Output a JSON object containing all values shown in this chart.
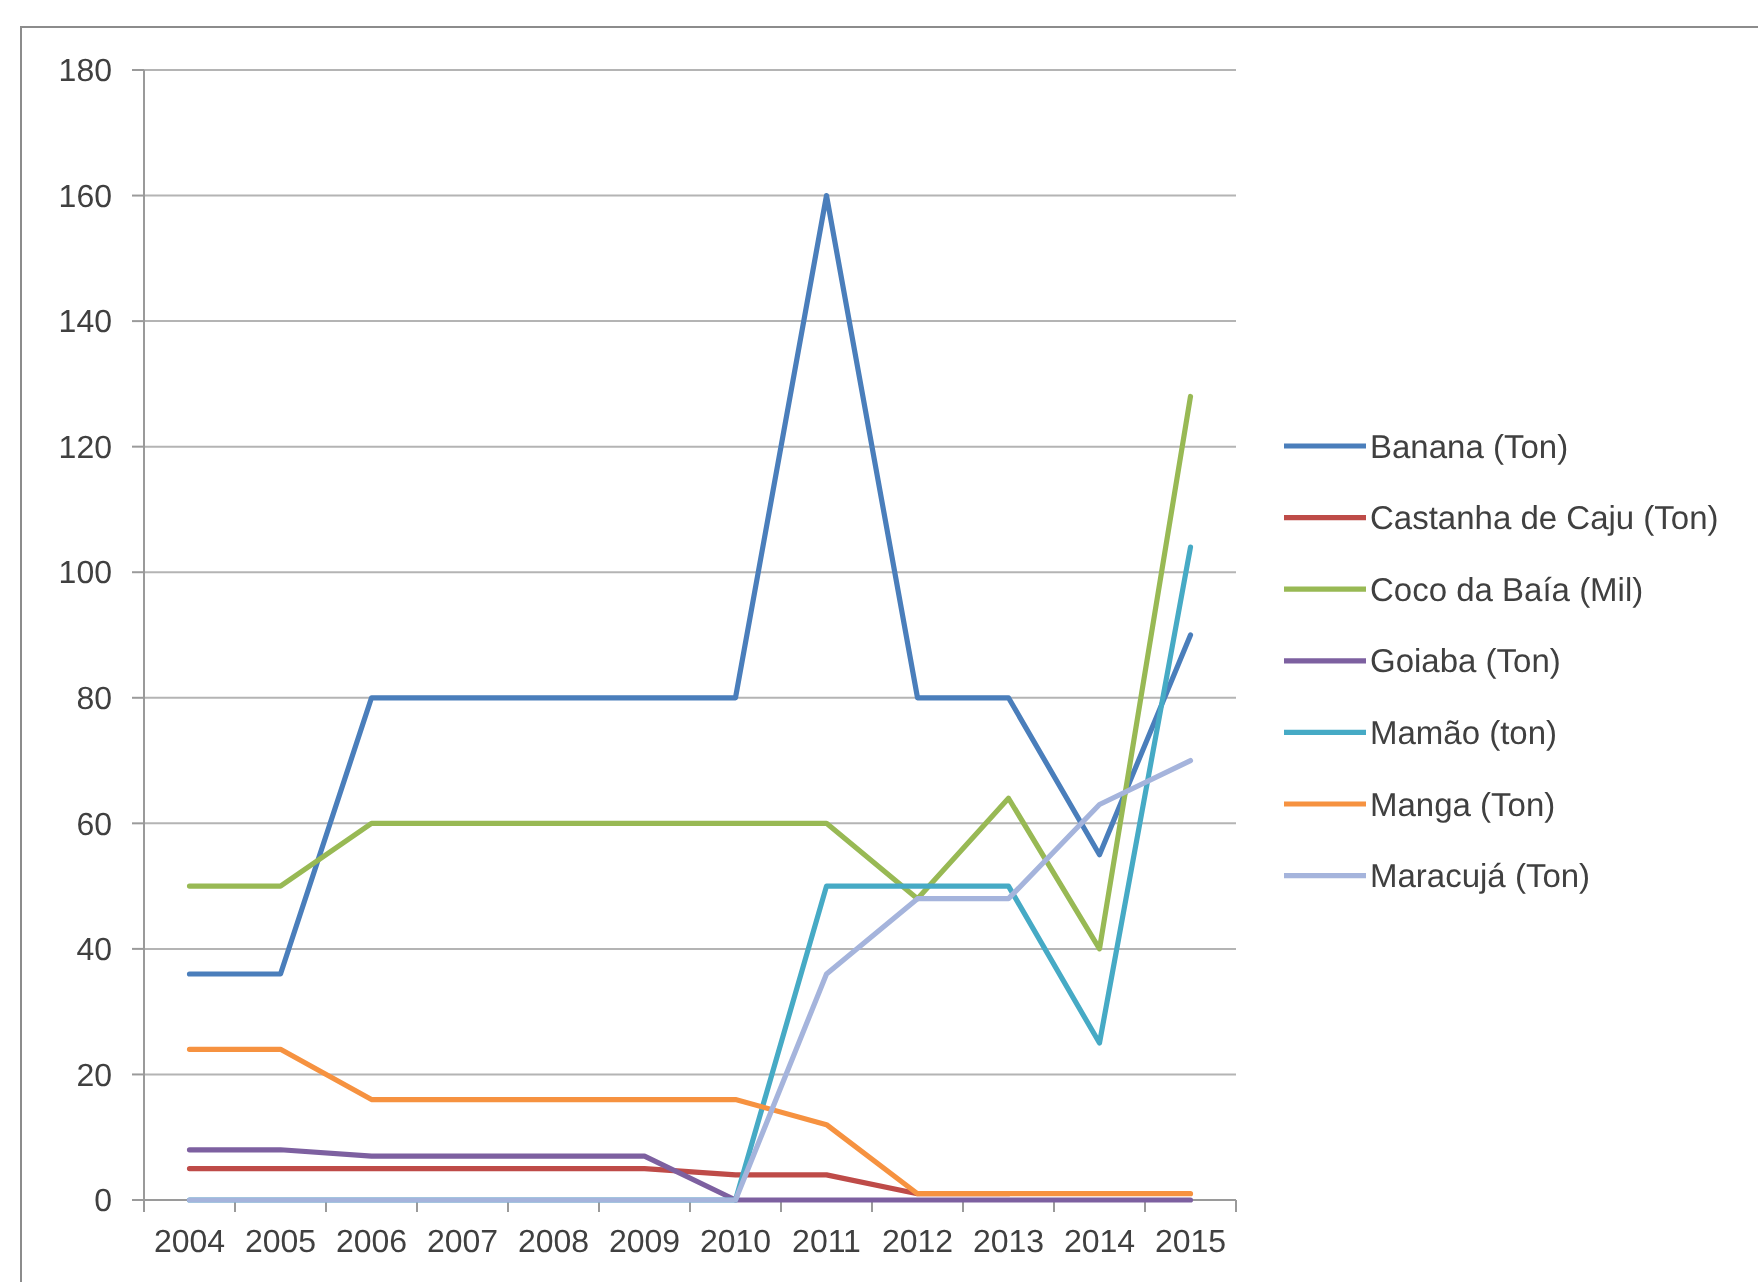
{
  "chart_data": {
    "type": "line",
    "categories": [
      "2004",
      "2005",
      "2006",
      "2007",
      "2008",
      "2009",
      "2010",
      "2011",
      "2012",
      "2013",
      "2014",
      "2015"
    ],
    "series": [
      {
        "name": "Banana (Ton)",
        "color": "#4a7ebb",
        "values": [
          36,
          36,
          80,
          80,
          80,
          80,
          80,
          160,
          80,
          80,
          55,
          90
        ]
      },
      {
        "name": "Castanha de Caju (Ton)",
        "color": "#be4b48",
        "values": [
          5,
          5,
          5,
          5,
          5,
          5,
          4,
          4,
          1,
          1,
          null,
          null
        ]
      },
      {
        "name": "Coco da Baía (Mil)",
        "color": "#98b954",
        "values": [
          50,
          50,
          60,
          60,
          60,
          60,
          60,
          60,
          48,
          64,
          40,
          128
        ]
      },
      {
        "name": "Goiaba (Ton)",
        "color": "#7d60a0",
        "values": [
          8,
          8,
          7,
          7,
          7,
          7,
          0,
          0,
          0,
          0,
          0,
          0
        ]
      },
      {
        "name": "Mamão (ton)",
        "color": "#46aac5",
        "values": [
          0,
          0,
          0,
          0,
          0,
          0,
          0,
          50,
          50,
          50,
          25,
          104
        ]
      },
      {
        "name": "Manga (Ton)",
        "color": "#f69240",
        "values": [
          24,
          24,
          16,
          16,
          16,
          16,
          16,
          12,
          1,
          1,
          1,
          1
        ]
      },
      {
        "name": "Maracujá (Ton)",
        "color": "#a5b4dc",
        "values": [
          0,
          0,
          0,
          0,
          0,
          0,
          0,
          36,
          48,
          48,
          63,
          70
        ]
      }
    ],
    "ylim": [
      0,
      180
    ],
    "yticks": [
      0,
      20,
      40,
      60,
      80,
      100,
      120,
      140,
      160,
      180
    ],
    "grid": "y",
    "legend": "right",
    "marker": "none",
    "line_style": "solid"
  }
}
